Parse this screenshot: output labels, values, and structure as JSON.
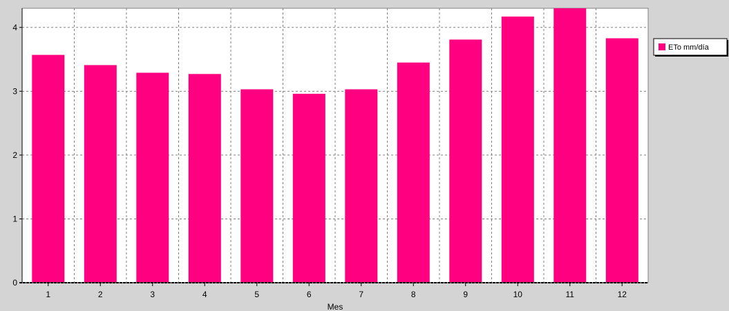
{
  "chart_data": {
    "type": "bar",
    "categories": [
      "1",
      "2",
      "3",
      "4",
      "5",
      "6",
      "7",
      "8",
      "9",
      "10",
      "11",
      "12"
    ],
    "series": [
      {
        "name": "ETo  mm/día",
        "color": "#ff0080",
        "values": [
          3.57,
          3.41,
          3.29,
          3.27,
          3.03,
          2.96,
          3.03,
          3.45,
          3.81,
          4.17,
          4.3,
          3.83
        ]
      }
    ],
    "xlabel": "Mes",
    "ylabel": "",
    "ylim": [
      0,
      4.3
    ],
    "yticks": [
      0,
      1,
      2,
      3,
      4
    ],
    "grid": true,
    "legend_position": "right"
  }
}
